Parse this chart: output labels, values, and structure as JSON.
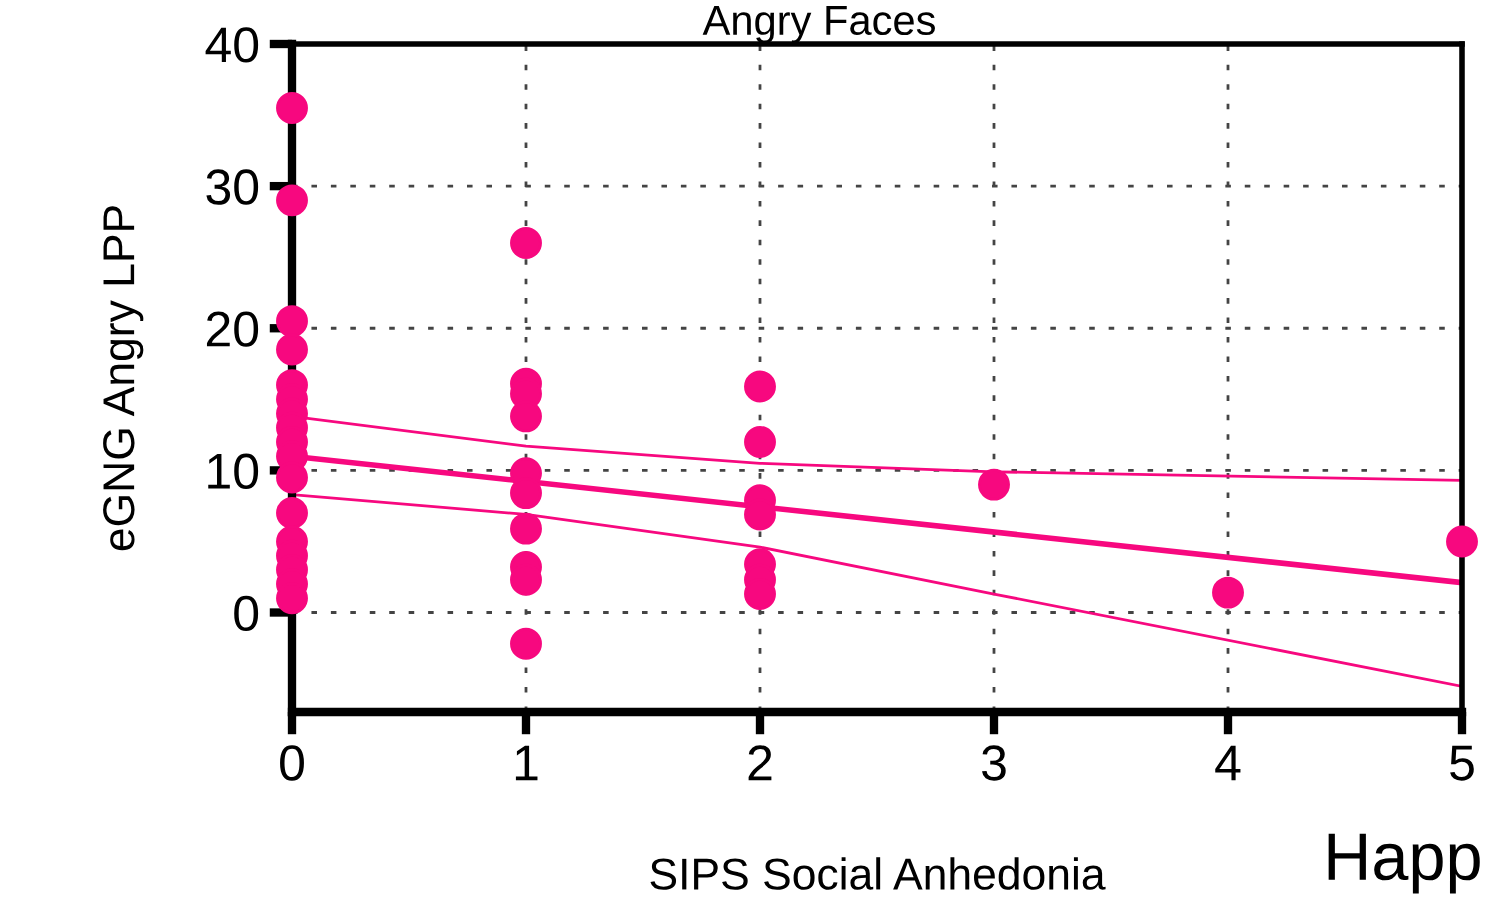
{
  "chart_data": {
    "type": "scatter",
    "title": "Angry Faces",
    "xlabel": "SIPS Social Anhedonia",
    "ylabel": "eGNG Angry LPP",
    "series": [
      {
        "marker": "circle",
        "color": "#f7087f",
        "x": [
          0,
          0,
          0,
          0,
          0,
          0,
          0,
          0,
          0,
          0,
          0,
          0,
          0,
          0,
          0,
          0,
          0,
          1,
          1,
          1,
          1,
          1,
          1,
          1,
          1,
          1,
          1,
          2,
          2,
          2,
          2,
          2,
          2,
          2,
          3,
          4,
          5
        ],
        "values": [
          35.5,
          29,
          20.5,
          18.5,
          16,
          15,
          14,
          13,
          12,
          11,
          9.5,
          7,
          5,
          4,
          3,
          2,
          1,
          26,
          16.1,
          15.4,
          13.8,
          9.8,
          8.4,
          5.9,
          3.2,
          2.3,
          -2.2,
          15.9,
          12,
          7.9,
          6.9,
          3.4,
          2.3,
          1.3,
          9,
          1.4,
          5
        ]
      },
      {
        "type": "line",
        "color": "#f7087f",
        "x": [
          0,
          5
        ],
        "values": [
          11,
          2.1
        ]
      },
      {
        "type": "line",
        "color": "#f7087f",
        "x": [
          0,
          1,
          2,
          3,
          5
        ],
        "values": [
          13.8,
          11.7,
          10.5,
          9.9,
          9.3
        ]
      },
      {
        "type": "line",
        "color": "#f7087f",
        "x": [
          0,
          1,
          2,
          3,
          5
        ],
        "values": [
          8.3,
          6.9,
          4.6,
          1.3,
          -5.2
        ]
      }
    ],
    "xlim": [
      0,
      5
    ],
    "ylim": [
      -7,
      40
    ],
    "xticks": [
      0,
      1,
      2,
      3,
      4,
      5
    ],
    "yticks": [
      0,
      10,
      20,
      30,
      40
    ],
    "grid": true,
    "annotations": [
      "Happ"
    ]
  }
}
